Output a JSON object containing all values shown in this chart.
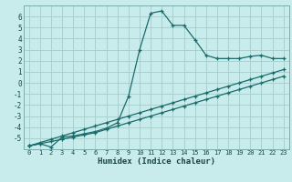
{
  "xlabel": "Humidex (Indice chaleur)",
  "bg_color": "#c8ecec",
  "grid_color": "#aad0d0",
  "line_color": "#1a6b6b",
  "xlim": [
    -0.5,
    23.5
  ],
  "ylim": [
    -6,
    7
  ],
  "xticks": [
    0,
    1,
    2,
    3,
    4,
    5,
    6,
    7,
    8,
    9,
    10,
    11,
    12,
    13,
    14,
    15,
    16,
    17,
    18,
    19,
    20,
    21,
    22,
    23
  ],
  "yticks": [
    -5,
    -4,
    -3,
    -2,
    -1,
    0,
    1,
    2,
    3,
    4,
    5,
    6
  ],
  "line1_x": [
    0,
    1,
    2,
    3,
    4,
    5,
    6,
    7,
    8,
    9,
    10,
    11,
    12,
    13,
    14,
    15,
    16,
    17,
    18,
    19,
    20,
    21,
    22,
    23
  ],
  "line1_y": [
    -5.7,
    -5.5,
    -5.8,
    -4.9,
    -4.8,
    -4.6,
    -4.4,
    -4.1,
    -3.6,
    -1.2,
    3.0,
    6.3,
    6.5,
    5.2,
    5.2,
    3.9,
    2.5,
    2.2,
    2.2,
    2.2,
    2.4,
    2.5,
    2.2,
    2.2
  ],
  "line2_x": [
    0,
    1,
    2,
    3,
    4,
    5,
    6,
    7,
    8,
    9,
    10,
    11,
    12,
    13,
    14,
    15,
    16,
    17,
    18,
    19,
    20,
    21,
    22,
    23
  ],
  "line2_y": [
    -5.7,
    -5.5,
    -5.3,
    -5.1,
    -4.9,
    -4.7,
    -4.5,
    -4.2,
    -3.9,
    -3.6,
    -3.3,
    -3.0,
    -2.7,
    -2.4,
    -2.1,
    -1.8,
    -1.5,
    -1.2,
    -0.9,
    -0.6,
    -0.3,
    0.0,
    0.3,
    0.6
  ],
  "line3_x": [
    0,
    1,
    2,
    3,
    4,
    5,
    6,
    7,
    8,
    9,
    10,
    11,
    12,
    13,
    14,
    15,
    16,
    17,
    18,
    19,
    20,
    21,
    22,
    23
  ],
  "line3_y": [
    -5.7,
    -5.4,
    -5.1,
    -4.8,
    -4.5,
    -4.2,
    -3.9,
    -3.6,
    -3.3,
    -3.0,
    -2.7,
    -2.4,
    -2.1,
    -1.8,
    -1.5,
    -1.2,
    -0.9,
    -0.6,
    -0.3,
    0.0,
    0.3,
    0.6,
    0.9,
    1.2
  ],
  "tick_fontsize": 5.0,
  "xlabel_fontsize": 6.5,
  "spine_color": "#7aadad"
}
